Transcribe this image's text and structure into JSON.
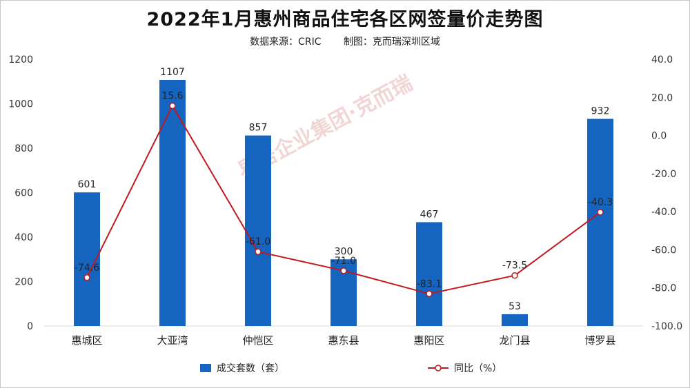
{
  "title": "2022年1月惠州商品住宅各区网签量价走势图",
  "source": "数据来源：CRIC",
  "maker": "制图：克而瑞深圳区域",
  "watermark": "易居企业集团·克而瑞",
  "colors": {
    "bar": "#1565c0",
    "line": "#c0181e",
    "axis": "#333333",
    "grid": "#d9d9d9"
  },
  "chart_data": {
    "type": "bar",
    "categories": [
      "惠城区",
      "大亚湾",
      "仲恺区",
      "惠东县",
      "惠阳区",
      "龙门县",
      "博罗县"
    ],
    "series": [
      {
        "name": "成交套数（套）",
        "type": "bar",
        "axis": "left",
        "values": [
          601,
          1107,
          857,
          300,
          467,
          53,
          932
        ]
      },
      {
        "name": "同比（%）",
        "type": "line",
        "axis": "right",
        "values": [
          -74.6,
          15.6,
          -61.0,
          -71.0,
          -83.1,
          -73.5,
          -40.3
        ]
      }
    ],
    "ylim_left": [
      0,
      1200
    ],
    "yticks_left": [
      "0",
      "200",
      "400",
      "600",
      "800",
      "1000",
      "1200"
    ],
    "ylim_right": [
      -100,
      40
    ],
    "yticks_right": [
      "-100.0",
      "-80.0",
      "-60.0",
      "-40.0",
      "-20.0",
      "0.0",
      "20.0",
      "40.0"
    ],
    "bar_labels": [
      "601",
      "1107",
      "857",
      "300",
      "467",
      "53",
      "932"
    ],
    "line_labels": [
      "-74.6",
      "15.6",
      "-61.0",
      "-71.0",
      "-83.1",
      "-73.5",
      "-40.3"
    ],
    "legend": {
      "position": "bottom",
      "bar_label": "成交套数（套）",
      "line_label": "同比（%）"
    },
    "grid": false
  }
}
